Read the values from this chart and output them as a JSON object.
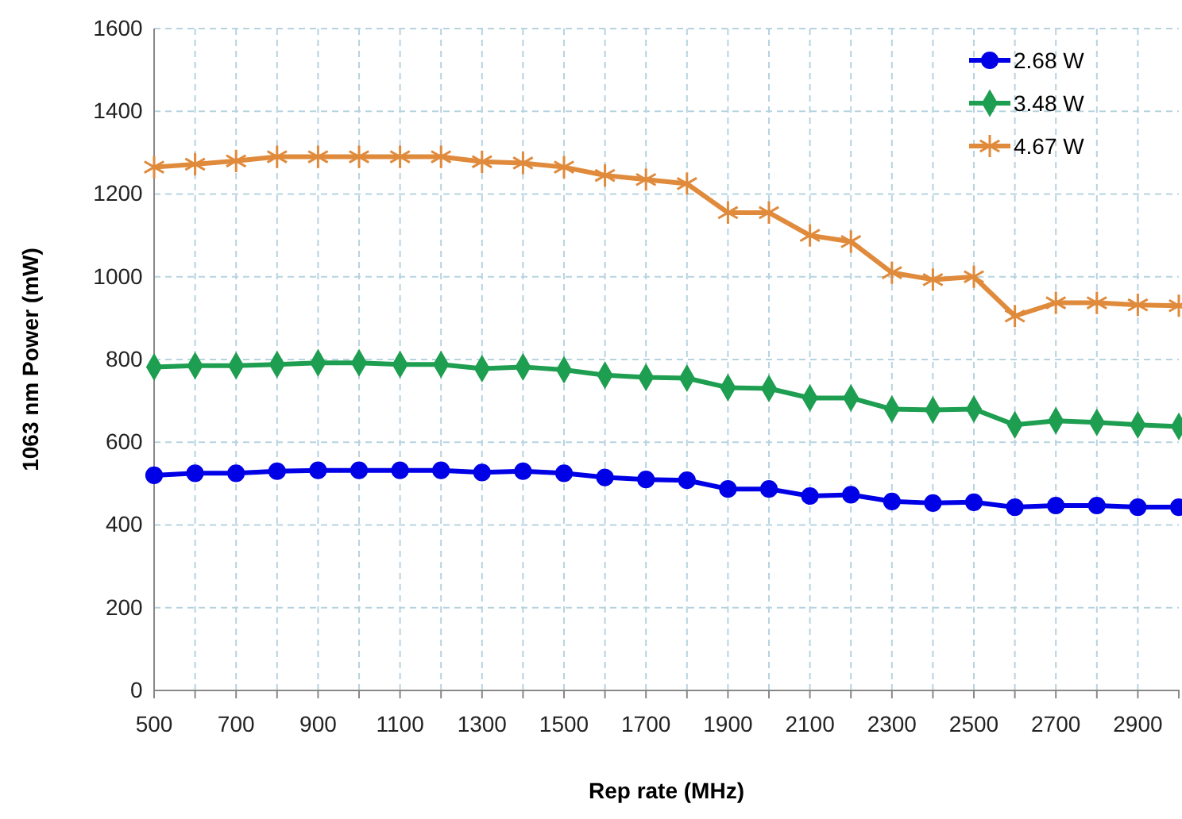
{
  "chart_data": {
    "type": "line",
    "xlabel": "Rep rate (MHz)",
    "ylabel": "1063 nm Power (mW)",
    "x": [
      500,
      600,
      700,
      800,
      900,
      1000,
      1100,
      1200,
      1300,
      1400,
      1500,
      1600,
      1700,
      1800,
      1900,
      2000,
      2100,
      2200,
      2300,
      2400,
      2500,
      2600,
      2700,
      2800,
      2900,
      3000
    ],
    "series": [
      {
        "name": "2.68 W",
        "color": "#0000e6",
        "marker": "circle",
        "values": [
          520,
          525,
          525,
          530,
          532,
          532,
          532,
          532,
          527,
          530,
          525,
          515,
          510,
          508,
          487,
          487,
          470,
          473,
          457,
          453,
          455,
          443,
          447,
          447,
          443,
          443
        ]
      },
      {
        "name": "3.48 W",
        "color": "#1e9e50",
        "marker": "diamond",
        "values": [
          782,
          785,
          785,
          788,
          792,
          792,
          788,
          788,
          778,
          782,
          775,
          762,
          757,
          755,
          732,
          730,
          707,
          707,
          680,
          678,
          680,
          642,
          652,
          648,
          642,
          638
        ]
      },
      {
        "name": "4.67 W",
        "color": "#e08a3c",
        "marker": "cross",
        "values": [
          1265,
          1272,
          1280,
          1290,
          1290,
          1290,
          1290,
          1290,
          1278,
          1275,
          1265,
          1245,
          1235,
          1225,
          1155,
          1155,
          1100,
          1085,
          1010,
          993,
          1000,
          905,
          937,
          937,
          932,
          930
        ]
      }
    ],
    "xlim": [
      500,
      3000
    ],
    "xticks": [
      500,
      {
        "value": 600,
        "label": null
      },
      700,
      {
        "value": 800,
        "label": null
      },
      900,
      {
        "value": 1000,
        "label": null
      },
      1100,
      {
        "value": 1200,
        "label": null
      },
      1300,
      {
        "value": 1400,
        "label": null
      },
      1500,
      {
        "value": 1600,
        "label": null
      },
      1700,
      {
        "value": 1800,
        "label": null
      },
      1900,
      {
        "value": 2000,
        "label": null
      },
      2100,
      {
        "value": 2200,
        "label": null
      },
      2300,
      {
        "value": 2400,
        "label": null
      },
      2500,
      {
        "value": 2600,
        "label": null
      },
      2700,
      {
        "value": 2800,
        "label": null
      },
      2900
    ],
    "ylim": [
      0,
      1600
    ],
    "yticks": [
      0,
      200,
      400,
      600,
      800,
      1000,
      1200,
      1400,
      1600
    ],
    "grid": true,
    "legend": "top right",
    "line_style": "solid"
  }
}
